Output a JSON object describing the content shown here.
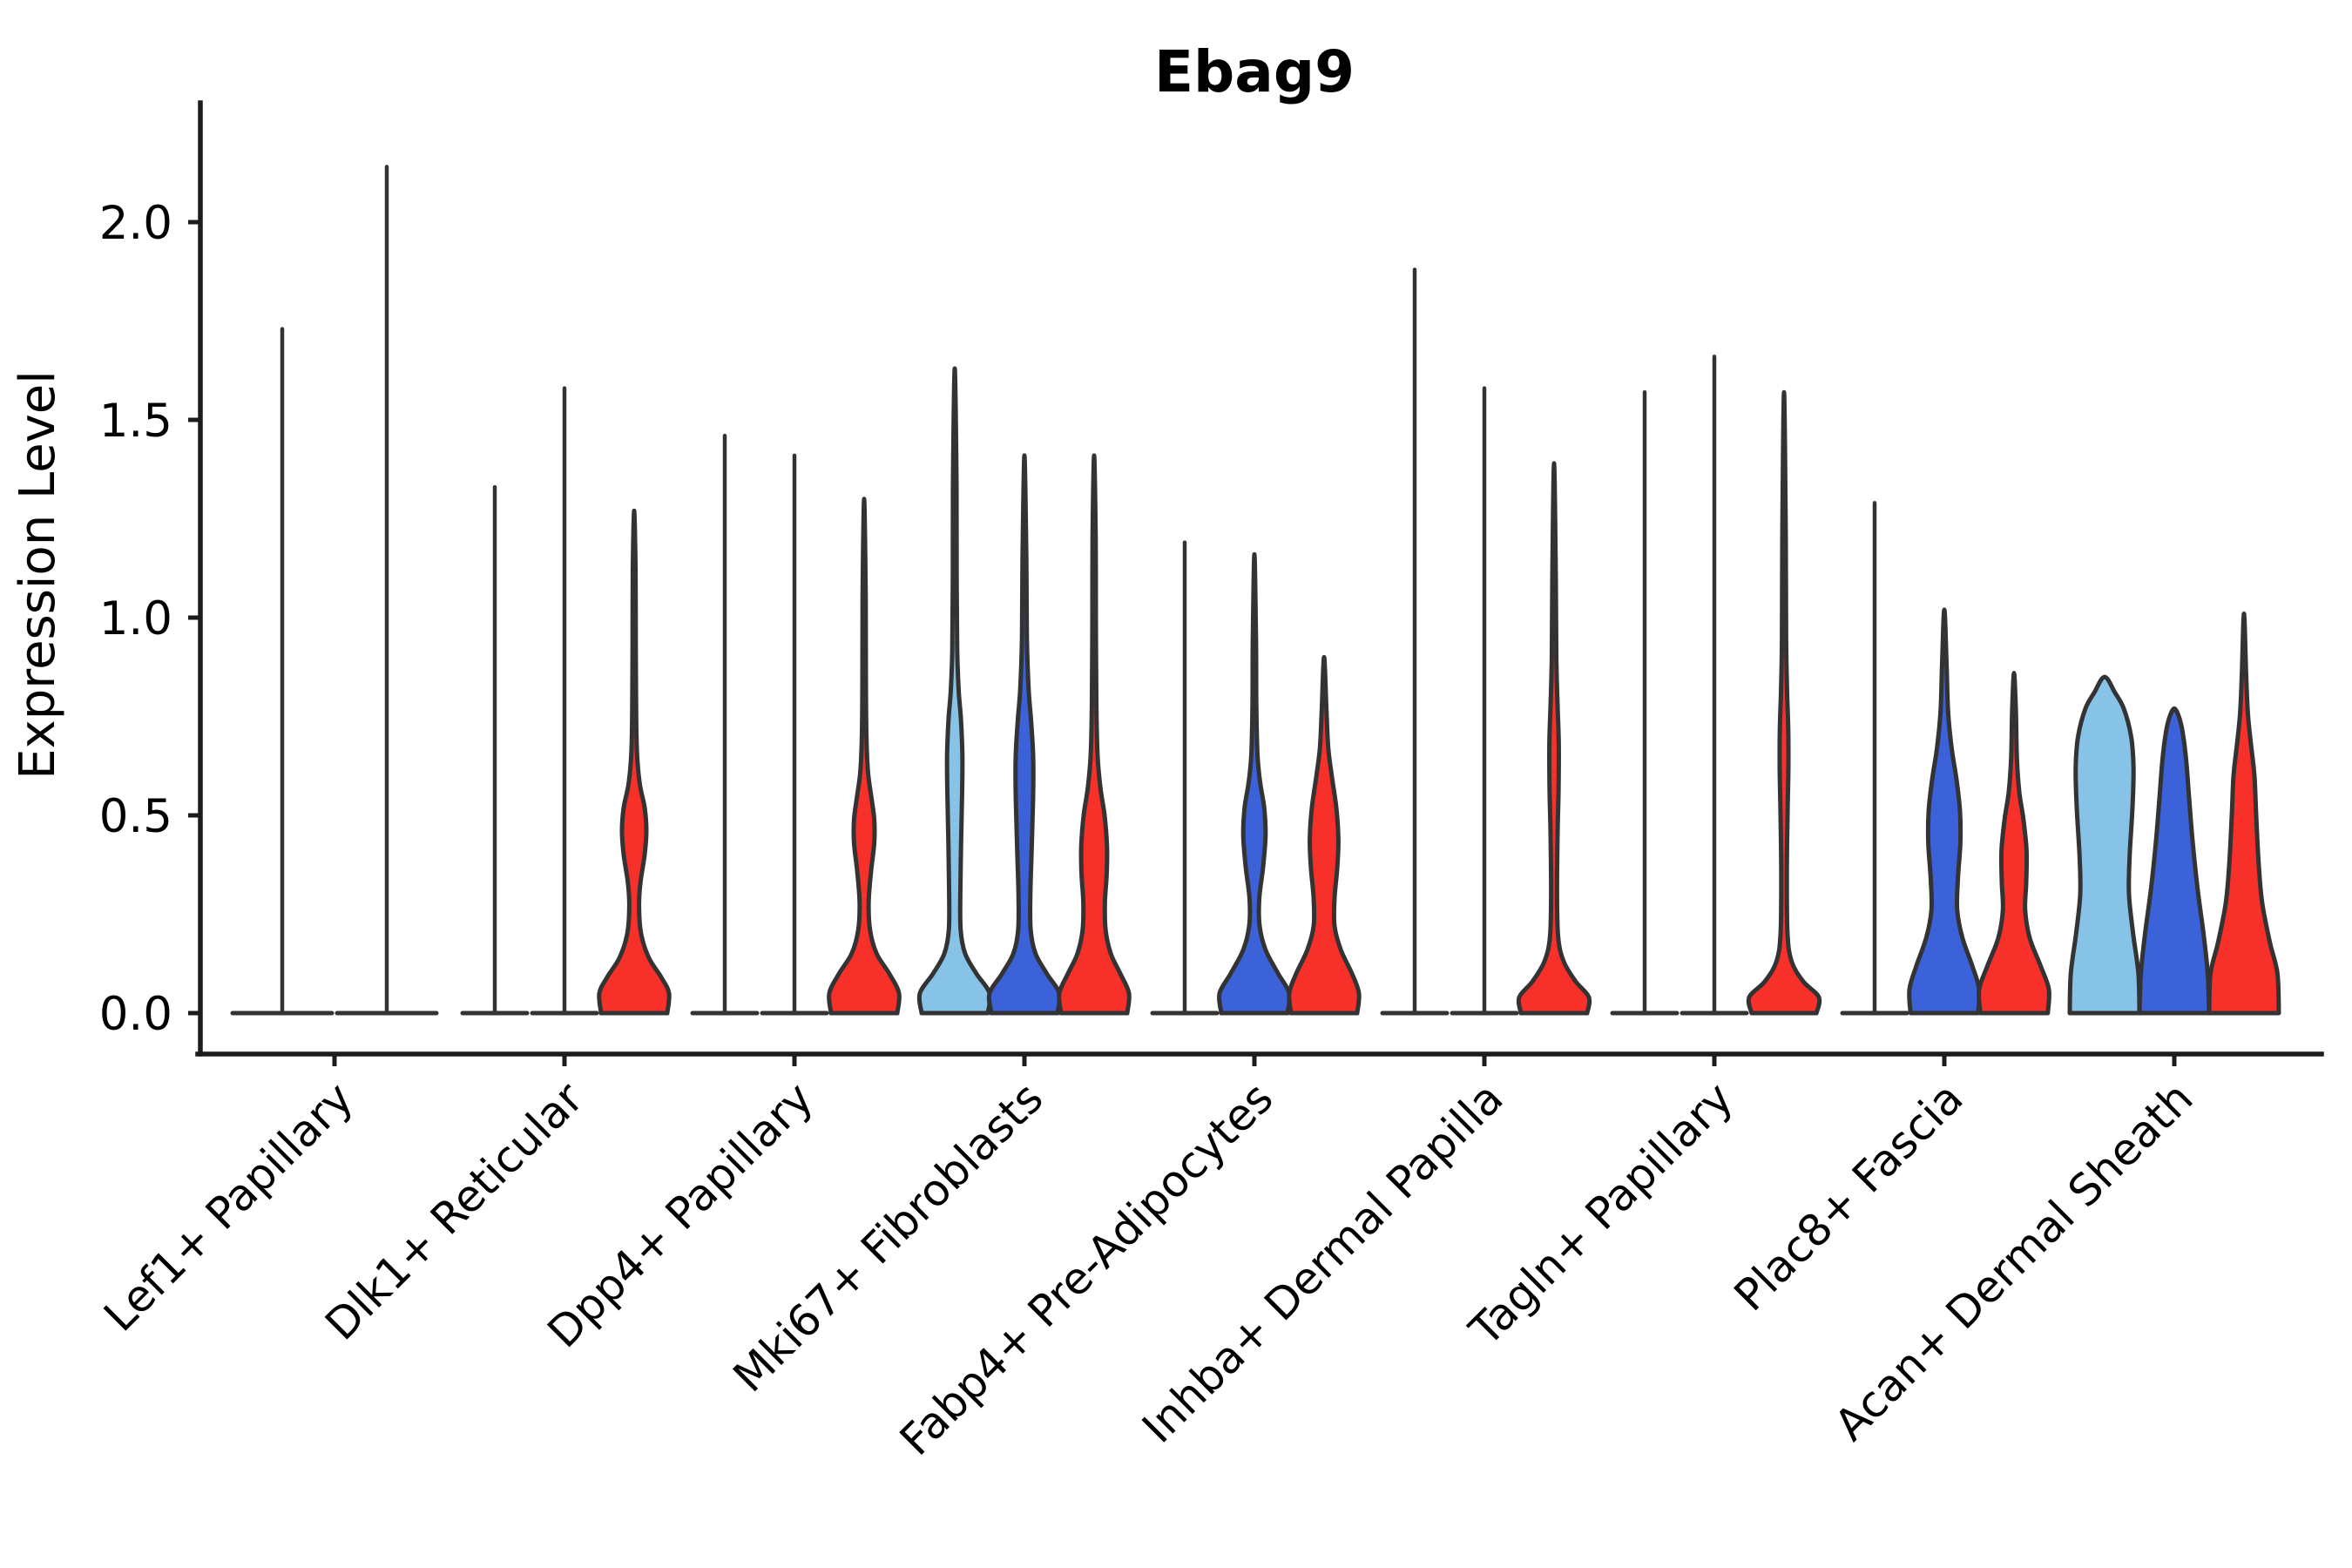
{
  "title": "Ebag9",
  "colors": {
    "lightblue": "#87C3E6",
    "blue": "#3B62D8",
    "red": "#F7302A",
    "outline": "#333333",
    "axis": "#1C1C1C",
    "text": "#000000",
    "background": "#FFFFFF"
  },
  "y_axis": {
    "label": "Expression Level",
    "tick_labels": [
      "0.0",
      "0.5",
      "1.0",
      "1.5",
      "2.0"
    ]
  },
  "chart_data": {
    "type": "violin",
    "title": "Ebag9",
    "ylabel": "Expression Level",
    "xlabel": "",
    "ylim": [
      -0.15,
      2.37
    ],
    "yticks": [
      0,
      0.5,
      1,
      1.5,
      2
    ],
    "grid": false,
    "legend_position": "none",
    "split_colors": [
      "#87C3E6",
      "#3B62D8",
      "#F7302A"
    ],
    "categories": [
      "Lef1+ Papillary",
      "Dlk1+ Reticular",
      "Dpp4+ Papillary",
      "Mki67+ Fibroblasts",
      "Fabp4+ Pre-Adipocytes",
      "Inhba+ Dermal Papilla",
      "Tagln+ Papillary",
      "Plac8+ Fascia",
      "Acan+ Dermal Sheath"
    ],
    "groups": [
      {
        "category": "Lef1+ Papillary",
        "violins": [
          {
            "fill": null,
            "max": 1.73,
            "collapsed": true
          },
          {
            "fill": null,
            "max": 2.14,
            "collapsed": true
          }
        ]
      },
      {
        "category": "Dlk1+ Reticular",
        "violins": [
          {
            "fill": null,
            "max": 1.33,
            "collapsed": true
          },
          {
            "fill": null,
            "max": 1.58,
            "collapsed": true
          },
          {
            "fill": "red",
            "max": 1.27,
            "collapsed": false,
            "profile": [
              [
                0,
                0.95
              ],
              [
                0.05,
                1.0
              ],
              [
                0.09,
                0.78
              ],
              [
                0.14,
                0.42
              ],
              [
                0.2,
                0.2
              ],
              [
                0.27,
                0.14
              ],
              [
                0.33,
                0.18
              ],
              [
                0.4,
                0.3
              ],
              [
                0.46,
                0.35
              ],
              [
                0.52,
                0.3
              ],
              [
                0.58,
                0.16
              ],
              [
                0.66,
                0.08
              ],
              [
                0.78,
                0.055
              ],
              [
                0.95,
                0.045
              ],
              [
                1.12,
                0.04
              ],
              [
                1.27,
                0
              ]
            ]
          }
        ]
      },
      {
        "category": "Dpp4+ Papillary",
        "violins": [
          {
            "fill": null,
            "max": 1.46,
            "collapsed": true
          },
          {
            "fill": null,
            "max": 1.41,
            "collapsed": true
          },
          {
            "fill": "red",
            "max": 1.3,
            "collapsed": false,
            "profile": [
              [
                0,
                0.95
              ],
              [
                0.05,
                1.0
              ],
              [
                0.1,
                0.72
              ],
              [
                0.15,
                0.36
              ],
              [
                0.21,
                0.17
              ],
              [
                0.28,
                0.13
              ],
              [
                0.36,
                0.2
              ],
              [
                0.43,
                0.29
              ],
              [
                0.49,
                0.29
              ],
              [
                0.55,
                0.2
              ],
              [
                0.61,
                0.11
              ],
              [
                0.7,
                0.065
              ],
              [
                0.85,
                0.05
              ],
              [
                1.05,
                0.045
              ],
              [
                1.3,
                0
              ]
            ]
          }
        ]
      },
      {
        "category": "Mki67+ Fibroblasts",
        "violins": [
          {
            "fill": "lightblue",
            "max": 1.63,
            "collapsed": false,
            "profile": [
              [
                0,
                0.95
              ],
              [
                0.05,
                1.0
              ],
              [
                0.1,
                0.62
              ],
              [
                0.15,
                0.3
              ],
              [
                0.21,
                0.17
              ],
              [
                0.3,
                0.16
              ],
              [
                0.42,
                0.18
              ],
              [
                0.55,
                0.21
              ],
              [
                0.65,
                0.22
              ],
              [
                0.74,
                0.18
              ],
              [
                0.82,
                0.11
              ],
              [
                0.92,
                0.07
              ],
              [
                1.1,
                0.055
              ],
              [
                1.35,
                0.05
              ],
              [
                1.63,
                0
              ]
            ]
          },
          {
            "fill": "blue",
            "max": 1.41,
            "collapsed": false,
            "profile": [
              [
                0,
                0.95
              ],
              [
                0.05,
                1.0
              ],
              [
                0.1,
                0.64
              ],
              [
                0.15,
                0.32
              ],
              [
                0.21,
                0.18
              ],
              [
                0.3,
                0.17
              ],
              [
                0.42,
                0.21
              ],
              [
                0.55,
                0.25
              ],
              [
                0.65,
                0.25
              ],
              [
                0.74,
                0.19
              ],
              [
                0.82,
                0.12
              ],
              [
                0.95,
                0.07
              ],
              [
                1.15,
                0.055
              ],
              [
                1.41,
                0
              ]
            ]
          },
          {
            "fill": "red",
            "max": 1.41,
            "collapsed": false,
            "profile": [
              [
                0,
                0.95
              ],
              [
                0.05,
                1.0
              ],
              [
                0.1,
                0.75
              ],
              [
                0.15,
                0.48
              ],
              [
                0.21,
                0.33
              ],
              [
                0.28,
                0.31
              ],
              [
                0.35,
                0.36
              ],
              [
                0.42,
                0.37
              ],
              [
                0.5,
                0.3
              ],
              [
                0.57,
                0.18
              ],
              [
                0.65,
                0.1
              ],
              [
                0.78,
                0.065
              ],
              [
                1.0,
                0.05
              ],
              [
                1.2,
                0.045
              ],
              [
                1.41,
                0
              ]
            ]
          }
        ]
      },
      {
        "category": "Fabp4+ Pre-Adipocytes",
        "violins": [
          {
            "fill": null,
            "max": 1.19,
            "collapsed": true
          },
          {
            "fill": "blue",
            "max": 1.16,
            "collapsed": false,
            "profile": [
              [
                0,
                0.95
              ],
              [
                0.05,
                1.0
              ],
              [
                0.1,
                0.68
              ],
              [
                0.16,
                0.32
              ],
              [
                0.22,
                0.15
              ],
              [
                0.29,
                0.14
              ],
              [
                0.37,
                0.25
              ],
              [
                0.45,
                0.32
              ],
              [
                0.52,
                0.28
              ],
              [
                0.58,
                0.17
              ],
              [
                0.65,
                0.09
              ],
              [
                0.78,
                0.055
              ],
              [
                0.95,
                0.045
              ],
              [
                1.16,
                0
              ]
            ]
          },
          {
            "fill": "red",
            "max": 0.9,
            "collapsed": false,
            "profile": [
              [
                0,
                0.95
              ],
              [
                0.05,
                1.0
              ],
              [
                0.1,
                0.8
              ],
              [
                0.16,
                0.48
              ],
              [
                0.22,
                0.3
              ],
              [
                0.29,
                0.3
              ],
              [
                0.37,
                0.38
              ],
              [
                0.44,
                0.41
              ],
              [
                0.52,
                0.35
              ],
              [
                0.6,
                0.22
              ],
              [
                0.67,
                0.12
              ],
              [
                0.76,
                0.07
              ],
              [
                0.9,
                0
              ]
            ]
          }
        ]
      },
      {
        "category": "Inhba+ Dermal Papilla",
        "violins": [
          {
            "fill": null,
            "max": 1.88,
            "collapsed": true
          },
          {
            "fill": null,
            "max": 1.58,
            "collapsed": true
          },
          {
            "fill": "red",
            "max": 1.39,
            "collapsed": false,
            "profile": [
              [
                0,
                0.95
              ],
              [
                0.04,
                1.0
              ],
              [
                0.08,
                0.62
              ],
              [
                0.13,
                0.28
              ],
              [
                0.19,
                0.12
              ],
              [
                0.3,
                0.085
              ],
              [
                0.45,
                0.1
              ],
              [
                0.57,
                0.13
              ],
              [
                0.68,
                0.135
              ],
              [
                0.78,
                0.1
              ],
              [
                0.9,
                0.065
              ],
              [
                1.1,
                0.05
              ],
              [
                1.39,
                0
              ]
            ]
          }
        ]
      },
      {
        "category": "Tagln+ Papillary",
        "violins": [
          {
            "fill": null,
            "max": 1.57,
            "collapsed": true
          },
          {
            "fill": null,
            "max": 1.66,
            "collapsed": true
          },
          {
            "fill": "red",
            "max": 1.57,
            "collapsed": false,
            "profile": [
              [
                0,
                0.93
              ],
              [
                0.04,
                1.0
              ],
              [
                0.08,
                0.55
              ],
              [
                0.13,
                0.22
              ],
              [
                0.2,
                0.1
              ],
              [
                0.35,
                0.08
              ],
              [
                0.5,
                0.1
              ],
              [
                0.62,
                0.125
              ],
              [
                0.72,
                0.12
              ],
              [
                0.82,
                0.085
              ],
              [
                0.95,
                0.06
              ],
              [
                1.2,
                0.05
              ],
              [
                1.57,
                0
              ]
            ]
          }
        ]
      },
      {
        "category": "Plac8+ Fascia",
        "violins": [
          {
            "fill": null,
            "max": 1.29,
            "collapsed": true
          },
          {
            "fill": "blue",
            "max": 1.02,
            "collapsed": false,
            "profile": [
              [
                0,
                0.97
              ],
              [
                0.06,
                1.0
              ],
              [
                0.12,
                0.8
              ],
              [
                0.19,
                0.52
              ],
              [
                0.26,
                0.37
              ],
              [
                0.34,
                0.39
              ],
              [
                0.43,
                0.46
              ],
              [
                0.51,
                0.45
              ],
              [
                0.59,
                0.35
              ],
              [
                0.67,
                0.21
              ],
              [
                0.76,
                0.11
              ],
              [
                0.88,
                0.065
              ],
              [
                1.02,
                0
              ]
            ]
          },
          {
            "fill": "red",
            "max": 0.86,
            "collapsed": false,
            "profile": [
              [
                0,
                0.97
              ],
              [
                0.06,
                1.0
              ],
              [
                0.12,
                0.76
              ],
              [
                0.19,
                0.45
              ],
              [
                0.26,
                0.32
              ],
              [
                0.33,
                0.35
              ],
              [
                0.41,
                0.36
              ],
              [
                0.49,
                0.27
              ],
              [
                0.56,
                0.15
              ],
              [
                0.65,
                0.08
              ],
              [
                0.76,
                0.055
              ],
              [
                0.86,
                0
              ]
            ]
          }
        ]
      },
      {
        "category": "Acan+ Dermal Sheath",
        "violins": [
          {
            "fill": "lightblue",
            "max": 0.85,
            "collapsed": false,
            "profile": [
              [
                0,
                1.0
              ],
              [
                0.1,
                0.97
              ],
              [
                0.2,
                0.82
              ],
              [
                0.3,
                0.7
              ],
              [
                0.4,
                0.72
              ],
              [
                0.52,
                0.8
              ],
              [
                0.62,
                0.83
              ],
              [
                0.7,
                0.76
              ],
              [
                0.77,
                0.55
              ],
              [
                0.81,
                0.3
              ],
              [
                0.85,
                0
              ]
            ]
          },
          {
            "fill": "blue",
            "max": 0.77,
            "collapsed": false,
            "profile": [
              [
                0,
                1.0
              ],
              [
                0.1,
                0.96
              ],
              [
                0.2,
                0.84
              ],
              [
                0.32,
                0.66
              ],
              [
                0.44,
                0.52
              ],
              [
                0.55,
                0.42
              ],
              [
                0.64,
                0.34
              ],
              [
                0.71,
                0.24
              ],
              [
                0.75,
                0.13
              ],
              [
                0.77,
                0
              ]
            ]
          },
          {
            "fill": "red",
            "max": 1.01,
            "collapsed": false,
            "profile": [
              [
                0,
                1.0
              ],
              [
                0.1,
                0.96
              ],
              [
                0.18,
                0.74
              ],
              [
                0.28,
                0.52
              ],
              [
                0.38,
                0.42
              ],
              [
                0.5,
                0.35
              ],
              [
                0.6,
                0.3
              ],
              [
                0.68,
                0.2
              ],
              [
                0.76,
                0.11
              ],
              [
                0.86,
                0.06
              ],
              [
                1.01,
                0
              ]
            ]
          }
        ]
      }
    ]
  }
}
